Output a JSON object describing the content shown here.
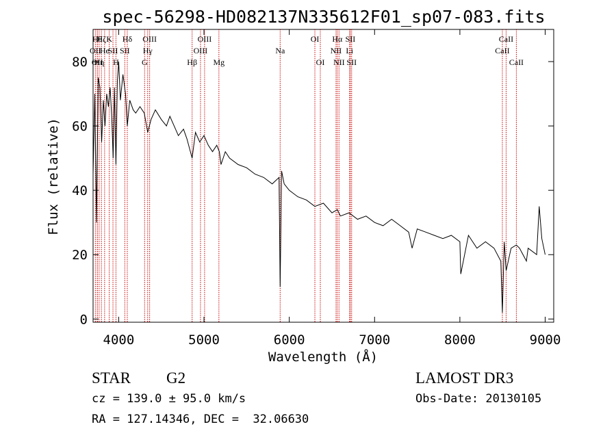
{
  "chart_data": {
    "type": "line",
    "title": "spec-56298-HD082137N335612F01_sp07-083.fits",
    "xlabel": "Wavelength (Å)",
    "ylabel": "Flux (relative)",
    "xlim": [
      3700,
      9100
    ],
    "ylim": [
      -1,
      90
    ],
    "xticks": [
      4000,
      5000,
      6000,
      7000,
      8000,
      9000
    ],
    "yticks": [
      0,
      20,
      40,
      60,
      80
    ],
    "grid": false,
    "line_color": "#000000",
    "marker_color": "#cc0000",
    "series": [
      {
        "values_x": [
          3700,
          3720,
          3740,
          3760,
          3780,
          3800,
          3820,
          3840,
          3860,
          3880,
          3900,
          3920,
          3935,
          3950,
          3968,
          3985,
          4000,
          4020,
          4050,
          4080,
          4101,
          4130,
          4170,
          4200,
          4250,
          4300,
          4340,
          4380,
          4430,
          4500,
          4560,
          4600,
          4650,
          4700,
          4760,
          4800,
          4861,
          4900,
          4950,
          5000,
          5050,
          5100,
          5150,
          5180,
          5200,
          5250,
          5300,
          5400,
          5500,
          5600,
          5700,
          5800,
          5880,
          5893,
          5910,
          5940,
          6000,
          6100,
          6200,
          6300,
          6400,
          6500,
          6563,
          6600,
          6700,
          6800,
          6900,
          7000,
          7100,
          7200,
          7300,
          7400,
          7440,
          7500,
          7600,
          7700,
          7800,
          7900,
          8000,
          8010,
          8100,
          8200,
          8300,
          8400,
          8480,
          8498,
          8520,
          8542,
          8600,
          8662,
          8700,
          8780,
          8800,
          8900,
          8930,
          8960,
          9000
        ],
        "values_y": [
          45,
          70,
          30,
          75,
          72,
          55,
          68,
          60,
          70,
          66,
          72,
          62,
          50,
          72,
          48,
          74,
          80,
          68,
          76,
          70,
          60,
          68,
          65,
          64,
          66,
          64,
          58,
          62,
          65,
          62,
          60,
          63,
          60,
          57,
          59,
          56,
          50,
          58,
          55,
          57,
          54,
          52,
          54,
          52,
          48,
          52,
          50,
          48,
          47,
          45,
          44,
          42,
          44,
          10,
          46,
          42,
          40,
          38,
          37,
          35,
          36,
          33,
          34,
          32,
          33,
          31,
          32,
          30,
          29,
          31,
          29,
          27,
          22,
          28,
          27,
          26,
          25,
          26,
          24,
          14,
          26,
          22,
          24,
          22,
          18,
          2,
          24,
          15,
          22,
          23,
          22,
          18,
          22,
          20,
          35,
          25,
          20
        ]
      }
    ],
    "line_markers": [
      {
        "w": 3727,
        "label": "OII",
        "row": 2
      },
      {
        "w": 3750,
        "label": "Hθ",
        "row": 1
      },
      {
        "w": 3750,
        "label": "OII",
        "row": 3
      },
      {
        "w": 3771,
        "label": "Hη",
        "row": 3
      },
      {
        "w": 3798,
        "label": "Hζ",
        "row": 1
      },
      {
        "w": 3835,
        "label": "He",
        "row": 2
      },
      {
        "w": 3889,
        "label": "K",
        "row": 1
      },
      {
        "w": 3933,
        "label": "SII",
        "row": 2
      },
      {
        "w": 3968,
        "label": "H",
        "row": 3
      },
      {
        "w": 4101,
        "label": "Hδ",
        "row": 1
      },
      {
        "w": 4072,
        "label": "SII",
        "row": 2
      },
      {
        "w": 4304,
        "label": "G",
        "row": 3
      },
      {
        "w": 4340,
        "label": "Hγ",
        "row": 2
      },
      {
        "w": 4363,
        "label": "OIII",
        "row": 1
      },
      {
        "w": 4861,
        "label": "Hβ",
        "row": 3
      },
      {
        "w": 4959,
        "label": "OIII",
        "row": 2
      },
      {
        "w": 5007,
        "label": "OIII",
        "row": 1
      },
      {
        "w": 5175,
        "label": "Mg",
        "row": 3
      },
      {
        "w": 5893,
        "label": "Na",
        "row": 2
      },
      {
        "w": 6300,
        "label": "OI",
        "row": 1
      },
      {
        "w": 6364,
        "label": "OI",
        "row": 3
      },
      {
        "w": 6548,
        "label": "NII",
        "row": 2
      },
      {
        "w": 6563,
        "label": "Hα",
        "row": 1
      },
      {
        "w": 6583,
        "label": "NII",
        "row": 3
      },
      {
        "w": 6707,
        "label": "Li",
        "row": 2
      },
      {
        "w": 6716,
        "label": "SII",
        "row": 1
      },
      {
        "w": 6731,
        "label": "SII",
        "row": 3
      },
      {
        "w": 8498,
        "label": "CaII",
        "row": 2
      },
      {
        "w": 8542,
        "label": "CaII",
        "row": 1
      },
      {
        "w": 8662,
        "label": "CaII",
        "row": 3
      }
    ]
  },
  "info": {
    "object_class": "STAR",
    "subclass": "G2",
    "survey": "LAMOST DR3",
    "redshift": "cz = 139.0 ± 95.0 km/s",
    "obs_date": "Obs-Date: 20130105",
    "coords": "RA = 127.14346, DEC =  32.06630"
  }
}
